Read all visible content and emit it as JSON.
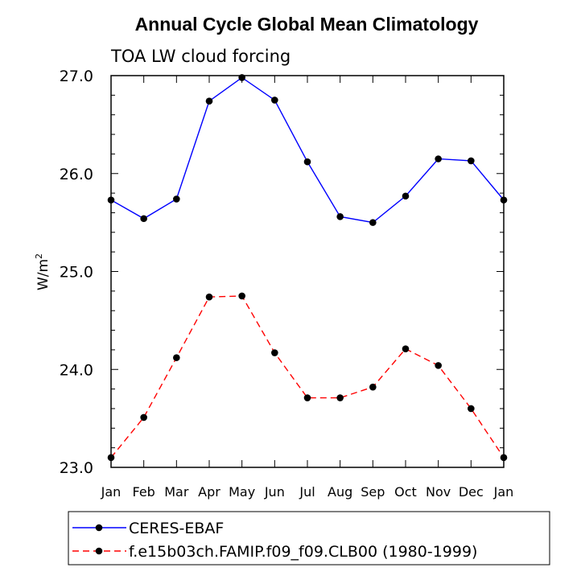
{
  "chart_data": {
    "type": "line",
    "title": "Annual Cycle Global Mean Climatology",
    "subtitle": "TOA LW cloud forcing",
    "ylabel_base": "W/m",
    "ylabel_sup": "2",
    "xlabel": "",
    "categories": [
      "Jan",
      "Feb",
      "Mar",
      "Apr",
      "May",
      "Jun",
      "Jul",
      "Aug",
      "Sep",
      "Oct",
      "Nov",
      "Dec",
      "Jan"
    ],
    "yticks": [
      "23.0",
      "24.0",
      "25.0",
      "26.0",
      "27.0"
    ],
    "ylim": [
      23.0,
      27.0
    ],
    "grid": false,
    "legend_position": "bottom",
    "series": [
      {
        "name": "CERES-EBAF",
        "color": "#0000ff",
        "dashed": false,
        "values": [
          25.73,
          25.54,
          25.74,
          26.74,
          26.98,
          26.75,
          26.12,
          25.56,
          25.5,
          25.77,
          26.15,
          26.13,
          25.73
        ]
      },
      {
        "name": "f.e15b03ch.FAMIP.f09_f09.CLB00 (1980-1999)",
        "color": "#ff0000",
        "dashed": true,
        "values": [
          23.1,
          23.51,
          24.12,
          24.74,
          24.75,
          24.17,
          23.71,
          23.71,
          23.82,
          24.21,
          24.04,
          23.6,
          23.1
        ]
      }
    ]
  }
}
